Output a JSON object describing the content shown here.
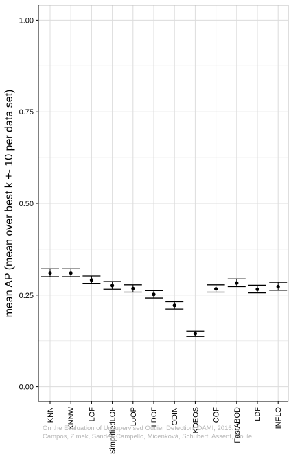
{
  "chart_data": {
    "type": "scatter",
    "ylabel": "mean AP (mean over best k +- 10 per data set)",
    "xlabel": "",
    "title": "",
    "ylim": [
      -0.04,
      1.04
    ],
    "yticks": [
      0.0,
      0.25,
      0.5,
      0.75,
      1.0
    ],
    "ytick_labels": [
      "0.00",
      "0.25",
      "0.50",
      "0.75",
      "1.00"
    ],
    "categories": [
      "KNN",
      "KNNW",
      "LOF",
      "SimplifiedLOF",
      "LoOP",
      "LDOF",
      "ODIN",
      "KDEOS",
      "COF",
      "FastABOD",
      "LDF",
      "INFLO"
    ],
    "series": [
      {
        "values": [
          0.31,
          0.31,
          0.291,
          0.276,
          0.268,
          0.252,
          0.222,
          0.145,
          0.267,
          0.283,
          0.266,
          0.273
        ],
        "upper": [
          0.322,
          0.322,
          0.302,
          0.287,
          0.278,
          0.262,
          0.232,
          0.152,
          0.278,
          0.294,
          0.277,
          0.285
        ],
        "lower": [
          0.3,
          0.3,
          0.282,
          0.266,
          0.258,
          0.242,
          0.212,
          0.137,
          0.258,
          0.273,
          0.256,
          0.263
        ]
      }
    ],
    "grid": true,
    "colors": {
      "grid": "#dcdcdc",
      "marks": "#000000",
      "background": "#ffffff"
    }
  },
  "watermark": {
    "line1": "On the Evaluation of Unsupervised Outlier Detection, DAMI, 2016.",
    "line2": "Campos, Zimek, Sander, Campello, Micenková, Schubert, Assent, Houle"
  }
}
